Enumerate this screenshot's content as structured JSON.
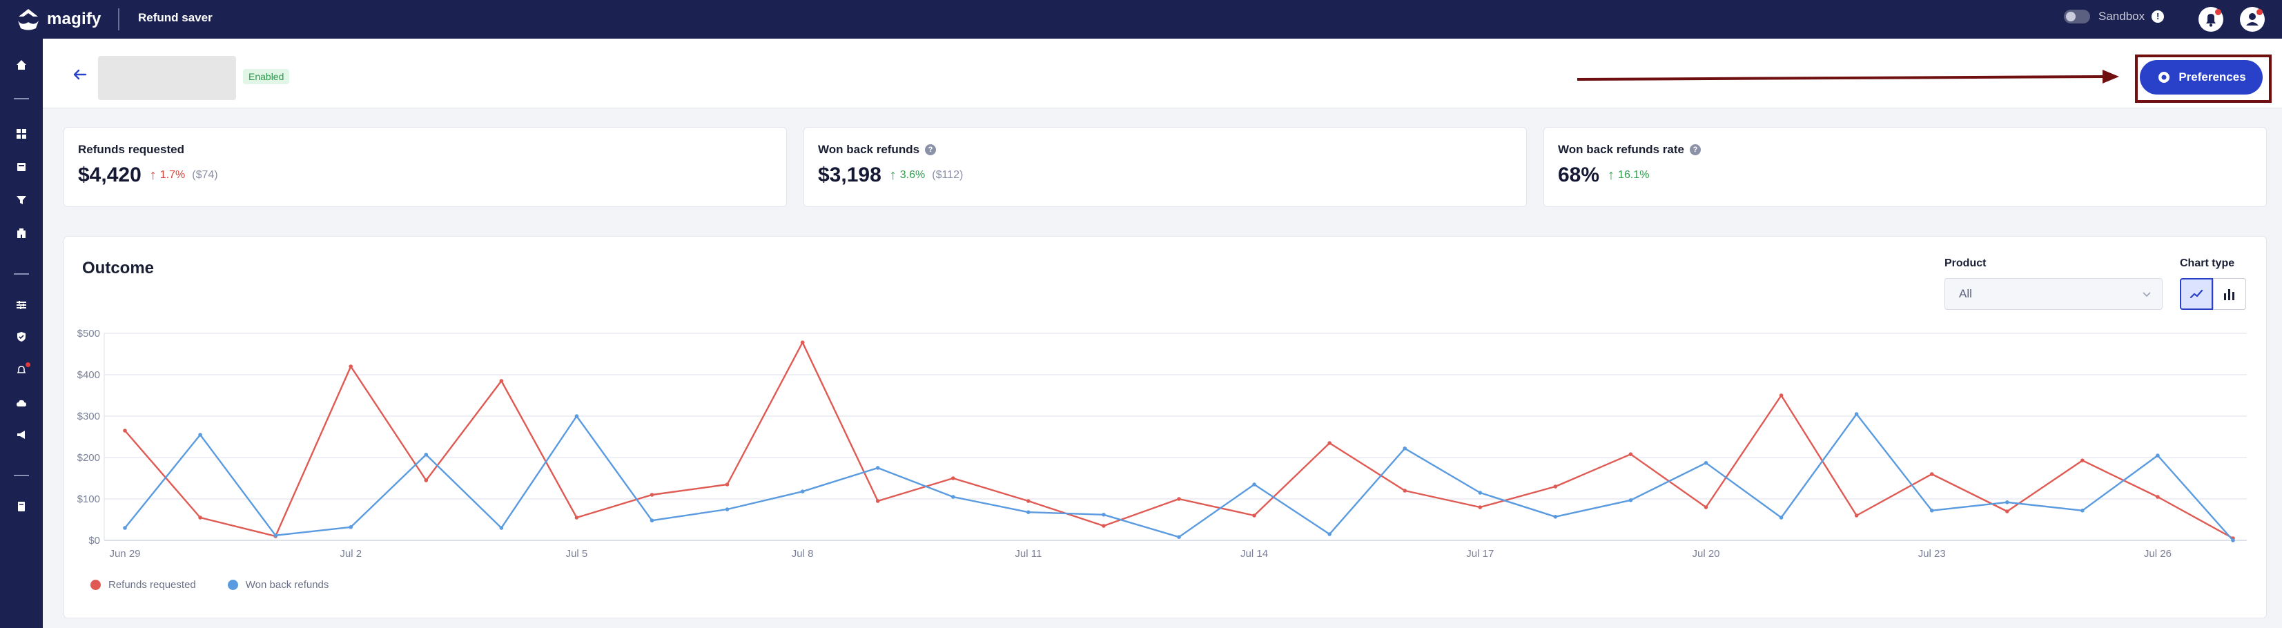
{
  "topbar": {
    "brand": "magify",
    "app_title": "Refund saver",
    "sandbox_label": "Sandbox",
    "info_glyph": "!"
  },
  "header": {
    "status_badge": "Enabled",
    "preferences_label": "Preferences"
  },
  "stats": [
    {
      "label": "Refunds requested",
      "value": "$4,420",
      "change": "1.7%",
      "direction": "up",
      "change_color": "#d9403a",
      "previous": "($74)",
      "has_help": false
    },
    {
      "label": "Won back refunds",
      "value": "$3,198",
      "change": "3.6%",
      "direction": "up",
      "change_color": "#2f9e4f",
      "previous": "($112)",
      "has_help": true
    },
    {
      "label": "Won back refunds rate",
      "value": "68%",
      "change": "16.1%",
      "direction": "up",
      "change_color": "#2f9e4f",
      "previous": "",
      "has_help": true
    }
  ],
  "help_glyph": "?",
  "arrow_glyph": "↑",
  "outcome": {
    "title": "Outcome",
    "product_label": "Product",
    "product_value": "All",
    "chart_type_label": "Chart type"
  },
  "chart_data": {
    "type": "line",
    "title": "",
    "x_ticks": [
      "Jun 29",
      "Jul 2",
      "Jul 5",
      "Jul 8",
      "Jul 11",
      "Jul 14",
      "Jul 17",
      "Jul 20",
      "Jul 23",
      "Jul 26"
    ],
    "y_ticks": [
      "$0",
      "$100",
      "$200",
      "$300",
      "$400",
      "$500"
    ],
    "ylim": [
      0,
      500
    ],
    "grid": true,
    "legend_position": "bottom-left",
    "x": [
      "Jun 29",
      "Jun 30",
      "Jul 1",
      "Jul 2",
      "Jul 3",
      "Jul 4",
      "Jul 5",
      "Jul 6",
      "Jul 7",
      "Jul 8",
      "Jul 9",
      "Jul 10",
      "Jul 11",
      "Jul 12",
      "Jul 13",
      "Jul 14",
      "Jul 15",
      "Jul 16",
      "Jul 17",
      "Jul 18",
      "Jul 19",
      "Jul 20",
      "Jul 21",
      "Jul 22",
      "Jul 23",
      "Jul 24",
      "Jul 25",
      "Jul 26",
      "Jul 27"
    ],
    "series": [
      {
        "name": "Refunds requested",
        "color": "#e05a54",
        "values": [
          265,
          55,
          10,
          420,
          145,
          385,
          55,
          110,
          135,
          478,
          95,
          150,
          95,
          35,
          100,
          60,
          235,
          120,
          80,
          130,
          208,
          80,
          350,
          60,
          160,
          70,
          193,
          105,
          5
        ]
      },
      {
        "name": "Won back refunds",
        "color": "#5a9be0",
        "values": [
          30,
          255,
          12,
          32,
          207,
          30,
          300,
          48,
          75,
          118,
          175,
          105,
          68,
          62,
          8,
          135,
          15,
          222,
          115,
          57,
          97,
          187,
          55,
          305,
          72,
          92,
          72,
          205,
          0
        ]
      }
    ]
  }
}
